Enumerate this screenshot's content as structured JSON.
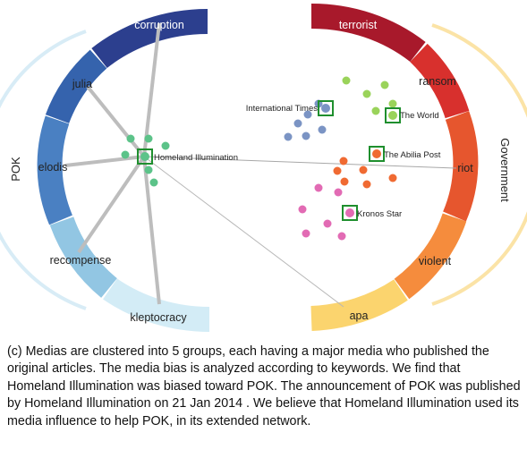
{
  "left_group_label": "POK",
  "right_group_label": "Government",
  "colors": {
    "pok_blues": [
      "#2c3f8e",
      "#3563ad",
      "#4a80c2",
      "#6aa2d2",
      "#92c6e3",
      "#c4e3f2"
    ],
    "gov_warm": [
      "#a8192b",
      "#d8302d",
      "#e6562e",
      "#f27b38",
      "#f8a445",
      "#fbd370"
    ],
    "node_green": "#5cc389",
    "node_blue": "#7b94c4",
    "node_orange": "#f06a32",
    "node_pink": "#e26bb4",
    "highlight_box": "#1f8f2e"
  },
  "keywords": {
    "left": [
      "corruption",
      "julia",
      "elodis",
      "recompense",
      "kleptocracy"
    ],
    "right": [
      "terrorist",
      "ransom",
      "riot",
      "violent",
      "apa"
    ]
  },
  "media": {
    "homeland": "Homeland Illumination",
    "international": "International Times",
    "world": "The World",
    "abilia": "The Abilia Post",
    "kronos": "Kronos Star"
  },
  "caption": "(c)  Medias are clustered into 5 groups,  each having a major media who published the original articles. The media bias is analyzed according to keywords. We find that Homeland Illumination was biased toward POK. The announcement of POK was published by Homeland Illumination on 21 Jan 2014 . We believe that Homeland Illumination used its media influence to help POK, in its extended network."
}
